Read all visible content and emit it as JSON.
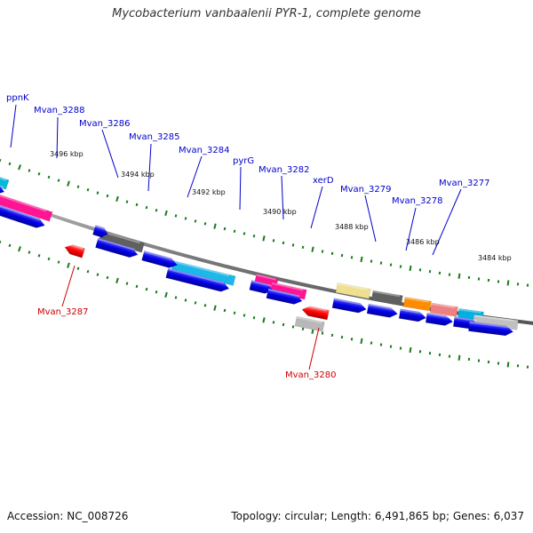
{
  "title": "Mycobacterium vanbaalenii PYR-1, complete genome",
  "accession": "Accession: NC_008726",
  "summary": "Topology: circular; Length: 6,491,865 bp; Genes: 6,037",
  "colors": {
    "backbone": "#888888",
    "gene_label_forward": "#0000cc",
    "gene_label_reverse": "#cc0000",
    "tick": "#1a7a1a",
    "cds": "#0000e6",
    "rna": "#ff0000"
  },
  "tick_labels": [
    "3496 kbp",
    "3494 kbp",
    "3492 kbp",
    "3490 kbp",
    "3488 kbp",
    "3486 kbp",
    "3484 kbp"
  ],
  "gene_labels": [
    {
      "name": "ppnK",
      "strand": "+"
    },
    {
      "name": "Mvan_3288",
      "strand": "+"
    },
    {
      "name": "Mvan_3286",
      "strand": "+"
    },
    {
      "name": "Mvan_3285",
      "strand": "+"
    },
    {
      "name": "Mvan_3284",
      "strand": "+"
    },
    {
      "name": "pyrG",
      "strand": "+"
    },
    {
      "name": "Mvan_3282",
      "strand": "+"
    },
    {
      "name": "xerD",
      "strand": "+"
    },
    {
      "name": "Mvan_3279",
      "strand": "+"
    },
    {
      "name": "Mvan_3278",
      "strand": "+"
    },
    {
      "name": "Mvan_3277",
      "strand": "+"
    },
    {
      "name": "Mvan_3287",
      "strand": "-"
    },
    {
      "name": "Mvan_3280",
      "strand": "-"
    }
  ]
}
